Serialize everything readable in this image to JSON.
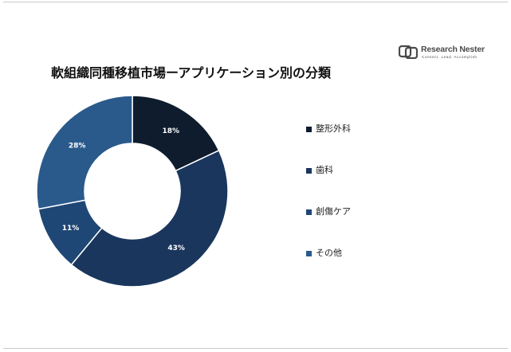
{
  "brand": {
    "name": "Research Nester",
    "tagline": "Connect. Lead. Accomplish"
  },
  "chart_data": {
    "type": "pie",
    "style": "donut",
    "title": "軟組織同種移植市場ーアプリケーション別の分類",
    "categories": [
      "整形外科",
      "歯科",
      "創傷ケア",
      "その他"
    ],
    "values": [
      18,
      43,
      11,
      28
    ],
    "unit": "%",
    "data_labels": [
      "18%",
      "43%",
      "11%",
      "28%"
    ],
    "colors": [
      "#0e1c2e",
      "#1a365d",
      "#1f4775",
      "#2a5a8c"
    ],
    "legend_position": "right",
    "start_angle_deg": 0,
    "direction": "clockwise"
  }
}
